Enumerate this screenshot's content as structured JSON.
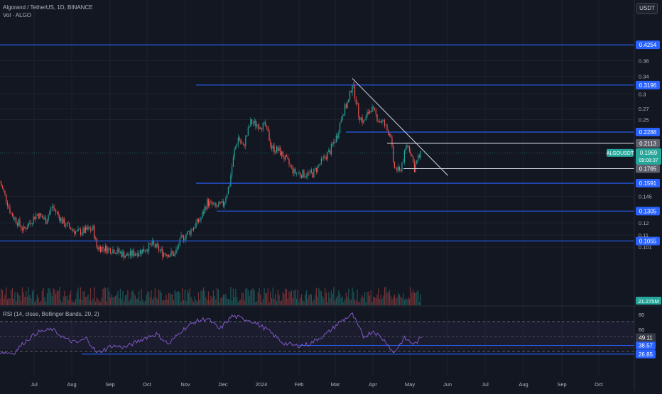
{
  "header": {
    "title": "Algorand / TetherUS, 1D, BINANCE",
    "volume_label": "Vol · ALGO",
    "rsi_label": "RSI (14, close, Bollinger Bands, 20, 2)",
    "currency": "USDT"
  },
  "colors": {
    "background": "#131722",
    "up": "#26a69a",
    "down": "#ef5350",
    "level_line": "#2962ff",
    "trend_line": "#d1d4dc",
    "rsi_line": "#7e57c2"
  },
  "chart_data": [
    {
      "type": "candlestick",
      "symbol": "ALGOUSDT",
      "y_axis_scale": "log",
      "y_ticks": [
        0.38,
        0.34,
        0.3,
        0.27,
        0.25,
        0.145,
        0.12,
        0.11,
        0.101
      ],
      "x_labels": [
        "Jul",
        "Aug",
        "Sep",
        "Oct",
        "Nov",
        "Dec",
        "2024",
        "Feb",
        "Mar",
        "Apr",
        "May",
        "Jun",
        "Jul",
        "Aug",
        "Sep",
        "Oct"
      ],
      "horizontal_levels": [
        {
          "label": "0.4254",
          "value": 0.4254,
          "color": "#2962ff"
        },
        {
          "label": "0.3196",
          "value": 0.3196,
          "color": "#2962ff"
        },
        {
          "label": "0.2288",
          "value": 0.2288,
          "color": "#2962ff"
        },
        {
          "label": "0.2113",
          "value": 0.2113,
          "color": "#d1d4dc"
        },
        {
          "label": "0.1765",
          "value": 0.1765,
          "color": "#d1d4dc"
        },
        {
          "label": "0.1591",
          "value": 0.1591,
          "color": "#2962ff"
        },
        {
          "label": "0.1305",
          "value": 0.1305,
          "color": "#2962ff"
        },
        {
          "label": "0.1055",
          "value": 0.1055,
          "color": "#2962ff"
        }
      ],
      "trend_line": {
        "start": {
          "date": "2024-03-11",
          "value": 0.335
        },
        "end": {
          "date": "2024-05-27",
          "value": 0.168
        }
      },
      "last_price": {
        "value": 0.1969,
        "label": "0.1969",
        "countdown": "09:08:37",
        "symbol_tag": "ALGOUSDT"
      },
      "volume_label": "21.275M",
      "price_path": [
        {
          "date": "2023-06-01",
          "value": 0.16
        },
        {
          "date": "2023-06-10",
          "value": 0.128
        },
        {
          "date": "2023-06-20",
          "value": 0.114
        },
        {
          "date": "2023-07-01",
          "value": 0.128
        },
        {
          "date": "2023-07-08",
          "value": 0.122
        },
        {
          "date": "2023-07-13",
          "value": 0.135
        },
        {
          "date": "2023-07-22",
          "value": 0.12
        },
        {
          "date": "2023-08-02",
          "value": 0.112
        },
        {
          "date": "2023-08-15",
          "value": 0.115
        },
        {
          "date": "2023-08-18",
          "value": 0.101
        },
        {
          "date": "2023-09-01",
          "value": 0.099
        },
        {
          "date": "2023-09-11",
          "value": 0.095
        },
        {
          "date": "2023-09-25",
          "value": 0.099
        },
        {
          "date": "2023-10-02",
          "value": 0.103
        },
        {
          "date": "2023-10-10",
          "value": 0.097
        },
        {
          "date": "2023-10-20",
          "value": 0.096
        },
        {
          "date": "2023-10-25",
          "value": 0.107
        },
        {
          "date": "2023-11-01",
          "value": 0.113
        },
        {
          "date": "2023-11-10",
          "value": 0.124
        },
        {
          "date": "2023-11-15",
          "value": 0.139
        },
        {
          "date": "2023-11-22",
          "value": 0.134
        },
        {
          "date": "2023-11-28",
          "value": 0.137
        },
        {
          "date": "2023-12-03",
          "value": 0.158
        },
        {
          "date": "2023-12-07",
          "value": 0.2
        },
        {
          "date": "2023-12-10",
          "value": 0.22
        },
        {
          "date": "2023-12-14",
          "value": 0.205
        },
        {
          "date": "2023-12-20",
          "value": 0.245
        },
        {
          "date": "2023-12-25",
          "value": 0.242
        },
        {
          "date": "2024-01-01",
          "value": 0.238
        },
        {
          "date": "2024-01-06",
          "value": 0.205
        },
        {
          "date": "2024-01-12",
          "value": 0.2
        },
        {
          "date": "2024-01-20",
          "value": 0.182
        },
        {
          "date": "2024-01-24",
          "value": 0.172
        },
        {
          "date": "2024-01-30",
          "value": 0.17
        },
        {
          "date": "2024-02-08",
          "value": 0.17
        },
        {
          "date": "2024-02-15",
          "value": 0.185
        },
        {
          "date": "2024-02-22",
          "value": 0.2
        },
        {
          "date": "2024-02-28",
          "value": 0.225
        },
        {
          "date": "2024-03-03",
          "value": 0.262
        },
        {
          "date": "2024-03-08",
          "value": 0.285
        },
        {
          "date": "2024-03-11",
          "value": 0.325
        },
        {
          "date": "2024-03-16",
          "value": 0.26
        },
        {
          "date": "2024-03-20",
          "value": 0.245
        },
        {
          "date": "2024-03-26",
          "value": 0.272
        },
        {
          "date": "2024-04-01",
          "value": 0.25
        },
        {
          "date": "2024-04-05",
          "value": 0.245
        },
        {
          "date": "2024-04-08",
          "value": 0.232
        },
        {
          "date": "2024-04-11",
          "value": 0.225
        },
        {
          "date": "2024-04-13",
          "value": 0.18
        },
        {
          "date": "2024-04-18",
          "value": 0.172
        },
        {
          "date": "2024-04-22",
          "value": 0.195
        },
        {
          "date": "2024-04-24",
          "value": 0.21
        },
        {
          "date": "2024-04-27",
          "value": 0.2
        },
        {
          "date": "2024-04-30",
          "value": 0.177
        },
        {
          "date": "2024-05-03",
          "value": 0.19
        },
        {
          "date": "2024-05-06",
          "value": 0.1969
        }
      ]
    },
    {
      "type": "line",
      "name": "RSI",
      "y_ticks": [
        80,
        60
      ],
      "levels": [
        {
          "label": "38.57",
          "value": 38.57
        },
        {
          "label": "26.85",
          "value": 26.85
        }
      ],
      "last_value": {
        "value": 49.11,
        "label": "49.11"
      },
      "series": [
        {
          "date": "2023-06-01",
          "value": 30
        },
        {
          "date": "2023-06-12",
          "value": 28
        },
        {
          "date": "2023-06-20",
          "value": 42
        },
        {
          "date": "2023-07-01",
          "value": 56
        },
        {
          "date": "2023-07-13",
          "value": 60
        },
        {
          "date": "2023-07-25",
          "value": 46
        },
        {
          "date": "2023-08-02",
          "value": 42
        },
        {
          "date": "2023-08-10",
          "value": 48
        },
        {
          "date": "2023-08-18",
          "value": 28
        },
        {
          "date": "2023-08-30",
          "value": 38
        },
        {
          "date": "2023-09-10",
          "value": 36
        },
        {
          "date": "2023-09-25",
          "value": 48
        },
        {
          "date": "2023-10-05",
          "value": 54
        },
        {
          "date": "2023-10-15",
          "value": 40
        },
        {
          "date": "2023-10-25",
          "value": 58
        },
        {
          "date": "2023-11-05",
          "value": 70
        },
        {
          "date": "2023-11-15",
          "value": 75
        },
        {
          "date": "2023-11-25",
          "value": 60
        },
        {
          "date": "2023-12-05",
          "value": 78
        },
        {
          "date": "2023-12-20",
          "value": 72
        },
        {
          "date": "2024-01-02",
          "value": 60
        },
        {
          "date": "2024-01-15",
          "value": 42
        },
        {
          "date": "2024-01-25",
          "value": 38
        },
        {
          "date": "2024-02-05",
          "value": 40
        },
        {
          "date": "2024-02-20",
          "value": 55
        },
        {
          "date": "2024-03-01",
          "value": 70
        },
        {
          "date": "2024-03-11",
          "value": 80
        },
        {
          "date": "2024-03-20",
          "value": 50
        },
        {
          "date": "2024-03-28",
          "value": 58
        },
        {
          "date": "2024-04-08",
          "value": 42
        },
        {
          "date": "2024-04-13",
          "value": 28
        },
        {
          "date": "2024-04-22",
          "value": 48
        },
        {
          "date": "2024-04-30",
          "value": 40
        },
        {
          "date": "2024-05-06",
          "value": 49.11
        }
      ]
    }
  ]
}
